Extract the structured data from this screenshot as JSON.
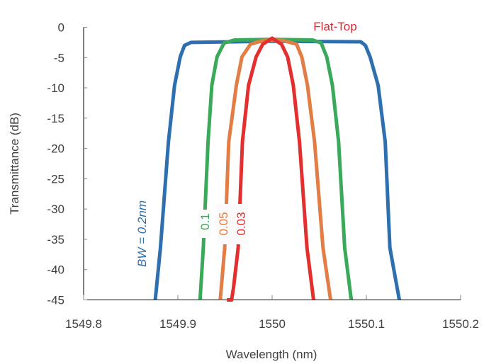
{
  "chart_data": {
    "type": "line",
    "title": "Flat-Top",
    "xlabel": "Wavelength (nm)",
    "ylabel": "Transmittance (dB)",
    "xlim": [
      1549.8,
      1550.2
    ],
    "ylim": [
      -45,
      0
    ],
    "xticks": [
      "1549.8",
      "1549.9",
      "1550",
      "1550.1",
      "1550.2"
    ],
    "yticks": [
      "0",
      "-5",
      "-10",
      "-15",
      "-20",
      "-25",
      "-30",
      "-35",
      "-40",
      "-45"
    ],
    "grid": false,
    "title_color": "#d22f33",
    "series": [
      {
        "name": "BW = 0.2nm",
        "color": "#2e6fb0",
        "x": [
          1549.876,
          1549.8815,
          1549.89,
          1549.8965,
          1549.9025,
          1549.907,
          1549.914,
          1550.0,
          1550.094,
          1550.099,
          1550.104,
          1550.1125,
          1550.12,
          1550.125,
          1550.135
        ],
        "y": [
          -45,
          -36.4,
          -18.9,
          -9.6,
          -4.9,
          -3.0,
          -2.5,
          -2.3,
          -2.4,
          -3.0,
          -4.9,
          -9.6,
          -18.9,
          -36.4,
          -45
        ]
      },
      {
        "name": "0.1",
        "color": "#3aa95a",
        "x": [
          1549.9235,
          1549.927,
          1549.932,
          1549.936,
          1549.9415,
          1549.949,
          1549.96,
          1550.0,
          1550.043,
          1550.052,
          1550.058,
          1550.064,
          1550.0705,
          1550.077,
          1550.084
        ],
        "y": [
          -45,
          -36.4,
          -18.9,
          -9.6,
          -4.9,
          -2.6,
          -2.1,
          -2.0,
          -2.1,
          -2.6,
          -4.9,
          -9.6,
          -18.9,
          -36.4,
          -45
        ]
      },
      {
        "name": "0.05",
        "color": "#e27d45",
        "x": [
          1549.945,
          1549.9497,
          1549.954,
          1549.962,
          1549.968,
          1549.977,
          1549.99,
          1550.0,
          1550.012,
          1550.026,
          1550.0315,
          1550.0375,
          1550.045,
          1550.054,
          1550.062
        ],
        "y": [
          -45,
          -36.4,
          -18.9,
          -9.6,
          -4.9,
          -2.8,
          -2.2,
          -2.1,
          -2.2,
          -2.8,
          -4.9,
          -9.6,
          -18.9,
          -36.4,
          -45
        ]
      },
      {
        "name": "0.03",
        "color": "#e3302f",
        "x": [
          1549.952,
          1549.957,
          1549.959,
          1549.964,
          1549.9685,
          1549.975,
          1549.983,
          1549.99,
          1550.0,
          1550.01,
          1550.0165,
          1550.0225,
          1550.029,
          1550.037,
          1550.044
        ],
        "y": [
          -45,
          -45,
          -43,
          -36.4,
          -18.9,
          -9.6,
          -4.9,
          -2.8,
          -1.8,
          -2.8,
          -4.9,
          -9.6,
          -18.9,
          -36.4,
          -45
        ]
      }
    ]
  }
}
